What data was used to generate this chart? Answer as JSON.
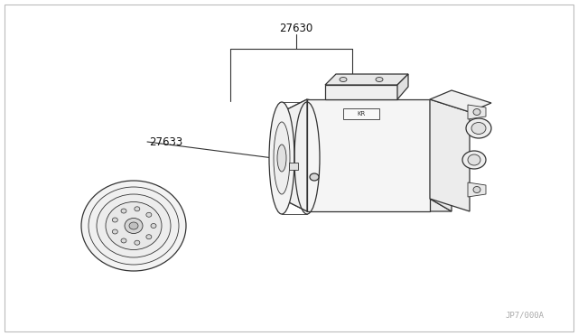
{
  "bg_color": "#ffffff",
  "border_color": "#bbbbbb",
  "line_color": "#333333",
  "line_color_light": "#777777",
  "label_27630": "27630",
  "label_27633": "27633",
  "ref_code": "JP7/000A",
  "label_fontsize": 8.5,
  "ref_fontsize": 6.5,
  "lw_main": 0.9,
  "lw_detail": 0.6
}
